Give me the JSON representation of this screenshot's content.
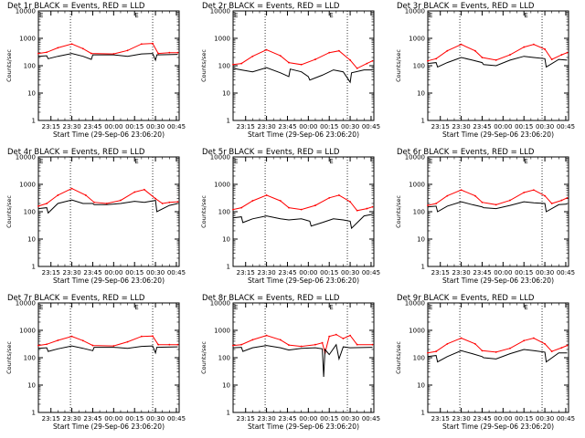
{
  "chart_data": [
    {
      "type": "line",
      "title": "Det 1r BLACK = Events, RED = LLD",
      "xlabel": "Start Time (29-Sep-06 23:06:20)",
      "ylabel": "Counts/sec",
      "yscale": "log",
      "ylim": [
        1,
        10000
      ],
      "ytick_labels": [
        "1",
        "10",
        "100",
        "1000",
        "10000"
      ],
      "x_tick_labels": [
        "23:15",
        "23:30",
        "23:45",
        "00:00",
        "00:15",
        "00:30",
        "00:45"
      ],
      "vlines": [
        "23:29",
        "00:28"
      ],
      "corner_marks": [
        "E",
        "E"
      ],
      "series": [
        {
          "color": "#ff0000",
          "x": [
            "23:06",
            "23:12",
            "23:20",
            "23:30",
            "23:38",
            "23:44",
            "00:00",
            "00:10",
            "00:20",
            "00:28",
            "00:32",
            "00:40",
            "00:46"
          ],
          "y": [
            280,
            310,
            450,
            620,
            420,
            280,
            270,
            360,
            620,
            650,
            280,
            300,
            300
          ]
        },
        {
          "color": "#000000",
          "x": [
            "23:06",
            "23:12",
            "23:13",
            "23:20",
            "23:30",
            "23:38",
            "23:44",
            "23:45",
            "00:00",
            "00:10",
            "00:20",
            "00:28",
            "00:30",
            "00:31",
            "00:46"
          ],
          "y": [
            220,
            230,
            180,
            220,
            280,
            220,
            170,
            250,
            250,
            220,
            270,
            280,
            160,
            250,
            260
          ]
        }
      ]
    },
    {
      "type": "line",
      "title": "Det 2r BLACK = Events, RED = LLD",
      "xlabel": "Start Time (29-Sep-06 23:06:20)",
      "ylabel": "Counts/sec",
      "yscale": "log",
      "ylim": [
        1,
        10000
      ],
      "ytick_labels": [
        "1",
        "10",
        "100",
        "1000",
        "10000"
      ],
      "x_tick_labels": [
        "23:15",
        "23:30",
        "23:45",
        "00:00",
        "00:15",
        "00:30",
        "00:45"
      ],
      "vlines": [
        "23:29",
        "00:28"
      ],
      "corner_marks": [
        "E",
        "E"
      ],
      "series": [
        {
          "color": "#ff0000",
          "x": [
            "23:06",
            "23:12",
            "23:20",
            "23:30",
            "23:40",
            "23:46",
            "23:55",
            "00:05",
            "00:15",
            "00:22",
            "00:30",
            "00:35",
            "00:42",
            "00:46"
          ],
          "y": [
            110,
            120,
            220,
            380,
            230,
            130,
            110,
            170,
            300,
            350,
            160,
            80,
            120,
            150
          ]
        },
        {
          "color": "#000000",
          "x": [
            "23:06",
            "23:12",
            "23:20",
            "23:30",
            "23:40",
            "23:46",
            "23:47",
            "23:55",
            "00:00",
            "00:01",
            "00:10",
            "00:18",
            "00:25",
            "00:30",
            "00:31",
            "00:40",
            "00:46"
          ],
          "y": [
            80,
            70,
            60,
            85,
            55,
            40,
            75,
            60,
            40,
            30,
            45,
            70,
            60,
            25,
            55,
            70,
            70
          ]
        }
      ]
    },
    {
      "type": "line",
      "title": "Det 3r BLACK = Events, RED = LLD",
      "xlabel": "Start Time (29-Sep-06 23:06:20)",
      "ylabel": "Counts/sec",
      "yscale": "log",
      "ylim": [
        1,
        10000
      ],
      "ytick_labels": [
        "1",
        "10",
        "100",
        "1000",
        "10000"
      ],
      "x_tick_labels": [
        "23:15",
        "23:30",
        "23:45",
        "00:00",
        "00:15",
        "00:30",
        "00:45"
      ],
      "vlines": [
        "23:29",
        "00:28"
      ],
      "corner_marks": [
        "E",
        "E"
      ],
      "series": [
        {
          "color": "#ff0000",
          "x": [
            "23:06",
            "23:12",
            "23:20",
            "23:30",
            "23:40",
            "23:45",
            "23:55",
            "00:05",
            "00:15",
            "00:22",
            "00:30",
            "00:35",
            "00:42",
            "00:46"
          ],
          "y": [
            150,
            180,
            350,
            600,
            350,
            200,
            160,
            250,
            480,
            600,
            400,
            170,
            250,
            300
          ]
        },
        {
          "color": "#000000",
          "x": [
            "23:06",
            "23:12",
            "23:13",
            "23:20",
            "23:30",
            "23:38",
            "23:45",
            "23:46",
            "23:55",
            "00:05",
            "00:15",
            "00:22",
            "00:30",
            "00:31",
            "00:40",
            "00:46"
          ],
          "y": [
            120,
            130,
            90,
            130,
            200,
            160,
            130,
            110,
            100,
            160,
            220,
            200,
            180,
            90,
            170,
            160
          ]
        }
      ]
    },
    {
      "type": "line",
      "title": "Det 4r BLACK = Events, RED = LLD",
      "xlabel": "Start Time (29-Sep-06 23:06:20)",
      "ylabel": "Counts/sec",
      "yscale": "log",
      "ylim": [
        1,
        10000
      ],
      "ytick_labels": [
        "1",
        "10",
        "100",
        "1000",
        "10000"
      ],
      "x_tick_labels": [
        "23:15",
        "23:30",
        "23:45",
        "00:00",
        "00:15",
        "00:30",
        "00:45"
      ],
      "vlines": [
        "23:29",
        "00:28"
      ],
      "corner_marks": [
        "E",
        "E"
      ],
      "series": [
        {
          "color": "#ff0000",
          "x": [
            "23:06",
            "23:12",
            "23:20",
            "23:30",
            "23:40",
            "23:46",
            "23:55",
            "00:05",
            "00:15",
            "00:22",
            "00:30",
            "00:35",
            "00:40",
            "00:46"
          ],
          "y": [
            160,
            200,
            400,
            700,
            400,
            220,
            200,
            260,
            520,
            640,
            300,
            200,
            220,
            230
          ]
        },
        {
          "color": "#000000",
          "x": [
            "23:06",
            "23:12",
            "23:13",
            "23:20",
            "23:30",
            "23:38",
            "23:45",
            "23:46",
            "23:55",
            "00:05",
            "00:15",
            "00:22",
            "00:30",
            "00:31",
            "00:40",
            "00:46"
          ],
          "y": [
            130,
            140,
            90,
            200,
            270,
            200,
            200,
            180,
            180,
            200,
            240,
            220,
            260,
            100,
            170,
            200
          ]
        }
      ]
    },
    {
      "type": "line",
      "title": "Det 5r BLACK = Events, RED = LLD",
      "xlabel": "Start Time (29-Sep-06 23:06:20)",
      "ylabel": "Counts/sec",
      "yscale": "log",
      "ylim": [
        1,
        10000
      ],
      "ytick_labels": [
        "1",
        "10",
        "100",
        "1000",
        "10000"
      ],
      "x_tick_labels": [
        "23:15",
        "23:30",
        "23:45",
        "00:00",
        "00:15",
        "00:30",
        "00:45"
      ],
      "vlines": [
        "23:29",
        "00:28"
      ],
      "corner_marks": [
        "E",
        "E"
      ],
      "series": [
        {
          "color": "#ff0000",
          "x": [
            "23:06",
            "23:12",
            "23:20",
            "23:30",
            "23:40",
            "23:46",
            "23:55",
            "00:05",
            "00:15",
            "00:22",
            "00:30",
            "00:35",
            "00:42",
            "00:46"
          ],
          "y": [
            120,
            140,
            250,
            400,
            250,
            140,
            120,
            170,
            320,
            400,
            230,
            110,
            130,
            150
          ]
        },
        {
          "color": "#000000",
          "x": [
            "23:06",
            "23:12",
            "23:13",
            "23:20",
            "23:30",
            "23:40",
            "23:46",
            "23:55",
            "00:01",
            "00:02",
            "00:10",
            "00:18",
            "00:25",
            "00:30",
            "00:31",
            "00:40",
            "00:46"
          ],
          "y": [
            60,
            65,
            40,
            55,
            70,
            55,
            50,
            55,
            45,
            30,
            40,
            55,
            50,
            45,
            25,
            70,
            80
          ]
        }
      ]
    },
    {
      "type": "line",
      "title": "Det 6r BLACK = Events, RED = LLD",
      "xlabel": "Start Time (29-Sep-06 23:06:20)",
      "ylabel": "Counts/sec",
      "yscale": "log",
      "ylim": [
        1,
        10000
      ],
      "ytick_labels": [
        "1",
        "10",
        "100",
        "1000",
        "10000"
      ],
      "x_tick_labels": [
        "23:15",
        "23:30",
        "23:45",
        "00:00",
        "00:15",
        "00:30",
        "00:45"
      ],
      "vlines": [
        "23:29",
        "00:28"
      ],
      "corner_marks": [
        "E",
        "E"
      ],
      "series": [
        {
          "color": "#ff0000",
          "x": [
            "23:06",
            "23:12",
            "23:20",
            "23:30",
            "23:40",
            "23:45",
            "23:55",
            "00:05",
            "00:15",
            "00:22",
            "00:30",
            "00:35",
            "00:42",
            "00:46"
          ],
          "y": [
            170,
            200,
            380,
            620,
            380,
            220,
            180,
            260,
            500,
            620,
            380,
            200,
            260,
            320
          ]
        },
        {
          "color": "#000000",
          "x": [
            "23:06",
            "23:12",
            "23:13",
            "23:20",
            "23:30",
            "23:38",
            "23:45",
            "23:46",
            "23:55",
            "00:05",
            "00:15",
            "00:22",
            "00:30",
            "00:31",
            "00:40",
            "00:46"
          ],
          "y": [
            150,
            160,
            100,
            160,
            230,
            180,
            150,
            140,
            130,
            170,
            230,
            210,
            200,
            100,
            180,
            190
          ]
        }
      ]
    },
    {
      "type": "line",
      "title": "Det 7r BLACK = Events, RED = LLD",
      "xlabel": "Start Time (29-Sep-06 23:06:20)",
      "ylabel": "Counts/sec",
      "yscale": "log",
      "ylim": [
        1,
        10000
      ],
      "ytick_labels": [
        "1",
        "10",
        "100",
        "1000",
        "10000"
      ],
      "x_tick_labels": [
        "23:15",
        "23:30",
        "23:45",
        "00:00",
        "00:15",
        "00:30",
        "00:45"
      ],
      "vlines": [
        "23:29",
        "00:28"
      ],
      "corner_marks": [
        "E",
        "E"
      ],
      "series": [
        {
          "color": "#ff0000",
          "x": [
            "23:06",
            "23:12",
            "23:20",
            "23:30",
            "23:38",
            "23:45",
            "00:00",
            "00:10",
            "00:20",
            "00:28",
            "00:32",
            "00:40",
            "00:46"
          ],
          "y": [
            280,
            310,
            430,
            600,
            420,
            280,
            270,
            380,
            600,
            620,
            300,
            300,
            300
          ]
        },
        {
          "color": "#000000",
          "x": [
            "23:06",
            "23:12",
            "23:13",
            "23:20",
            "23:30",
            "23:38",
            "23:45",
            "23:46",
            "00:00",
            "00:10",
            "00:20",
            "00:28",
            "00:30",
            "00:31",
            "00:46"
          ],
          "y": [
            220,
            230,
            170,
            210,
            270,
            220,
            180,
            240,
            240,
            220,
            260,
            270,
            150,
            240,
            250
          ]
        }
      ]
    },
    {
      "type": "line",
      "title": "Det 8r BLACK = Events, RED = LLD",
      "xlabel": "Start Time (29-Sep-06 23:06:20)",
      "ylabel": "Counts/sec",
      "yscale": "log",
      "ylim": [
        1,
        10000
      ],
      "ytick_labels": [
        "1",
        "10",
        "100",
        "1000",
        "10000"
      ],
      "x_tick_labels": [
        "23:15",
        "23:30",
        "23:45",
        "00:00",
        "00:15",
        "00:30",
        "00:45"
      ],
      "vlines": [
        "23:29",
        "00:28"
      ],
      "corner_marks": [
        "E",
        "E"
      ],
      "series": [
        {
          "color": "#ff0000",
          "x": [
            "23:06",
            "23:12",
            "23:20",
            "23:30",
            "23:40",
            "23:46",
            "23:55",
            "00:05",
            "00:10",
            "00:12",
            "00:15",
            "00:20",
            "00:25",
            "00:30",
            "00:35",
            "00:46"
          ],
          "y": [
            280,
            300,
            450,
            650,
            450,
            290,
            260,
            300,
            350,
            150,
            600,
            700,
            500,
            650,
            300,
            300
          ]
        },
        {
          "color": "#000000",
          "x": [
            "23:06",
            "23:12",
            "23:13",
            "23:20",
            "23:30",
            "23:40",
            "23:46",
            "23:55",
            "00:05",
            "00:10",
            "00:11",
            "00:12",
            "00:15",
            "00:20",
            "00:22",
            "00:25",
            "00:30",
            "00:46"
          ],
          "y": [
            230,
            240,
            170,
            230,
            280,
            230,
            190,
            220,
            230,
            210,
            20,
            200,
            130,
            300,
            90,
            250,
            230,
            240
          ]
        }
      ]
    },
    {
      "type": "line",
      "title": "Det 9r BLACK = Events, RED = LLD",
      "xlabel": "Start Time (29-Sep-06 23:06:20)",
      "ylabel": "Counts/sec",
      "yscale": "log",
      "ylim": [
        1,
        10000
      ],
      "ytick_labels": [
        "1",
        "10",
        "100",
        "1000",
        "10000"
      ],
      "x_tick_labels": [
        "23:15",
        "23:30",
        "23:45",
        "00:00",
        "00:15",
        "00:30",
        "00:45"
      ],
      "vlines": [
        "23:29",
        "00:28"
      ],
      "corner_marks": [
        "E",
        "E"
      ],
      "series": [
        {
          "color": "#ff0000",
          "x": [
            "23:06",
            "23:12",
            "23:20",
            "23:30",
            "23:40",
            "23:45",
            "23:55",
            "00:05",
            "00:15",
            "00:22",
            "00:30",
            "00:35",
            "00:42",
            "00:46"
          ],
          "y": [
            150,
            170,
            320,
            520,
            320,
            180,
            160,
            220,
            420,
            520,
            320,
            170,
            230,
            280
          ]
        },
        {
          "color": "#000000",
          "x": [
            "23:06",
            "23:12",
            "23:13",
            "23:20",
            "23:30",
            "23:38",
            "23:45",
            "23:46",
            "23:55",
            "00:05",
            "00:15",
            "00:22",
            "00:30",
            "00:31",
            "00:40",
            "00:46"
          ],
          "y": [
            110,
            120,
            70,
            110,
            180,
            140,
            110,
            100,
            90,
            140,
            200,
            180,
            160,
            70,
            150,
            150
          ]
        }
      ]
    }
  ]
}
